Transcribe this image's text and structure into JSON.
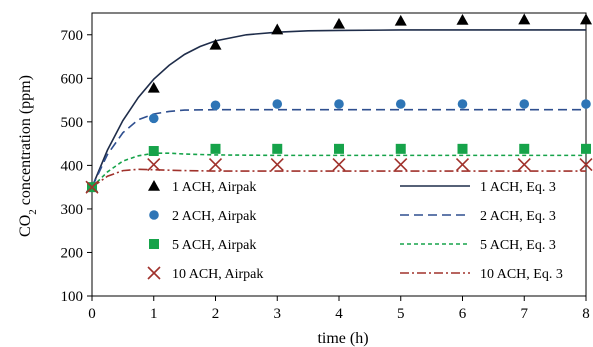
{
  "chart_data": {
    "type": "scatter",
    "xlabel": "time (h)",
    "ylabel_main": "CO",
    "ylabel_sub": "2",
    "ylabel_rest": " concentration  (ppm)",
    "xlim": [
      0,
      8
    ],
    "ylim": [
      100,
      750
    ],
    "x_ticks": [
      0,
      1,
      2,
      3,
      4,
      5,
      6,
      7,
      8
    ],
    "y_ticks": [
      100,
      200,
      300,
      400,
      500,
      600,
      700
    ],
    "grid": false,
    "legend_placement": "bottom-right",
    "markers": [
      {
        "name": "1 ACH, Airpak",
        "marker": "triangle",
        "color": "#000000",
        "x": [
          0,
          1,
          2,
          3,
          4,
          5,
          6,
          7,
          8
        ],
        "y": [
          350,
          578,
          677,
          712,
          725,
          732,
          734,
          735,
          735
        ]
      },
      {
        "name": "2 ACH, Airpak",
        "marker": "circle",
        "color": "#2e75b6",
        "x": [
          0,
          1,
          2,
          3,
          4,
          5,
          6,
          7,
          8
        ],
        "y": [
          350,
          508,
          538,
          541,
          541,
          541,
          541,
          541,
          541
        ]
      },
      {
        "name": "5 ACH, Airpak",
        "marker": "square",
        "color": "#16a34a",
        "x": [
          0,
          1,
          2,
          3,
          4,
          5,
          6,
          7,
          8
        ],
        "y": [
          350,
          433,
          438,
          438,
          438,
          438,
          438,
          438,
          438
        ]
      },
      {
        "name": "10 ACH, Airpak",
        "marker": "x",
        "color": "#a0322c",
        "x": [
          0,
          1,
          2,
          3,
          4,
          5,
          6,
          7,
          8
        ],
        "y": [
          350,
          402,
          402,
          402,
          402,
          402,
          402,
          402,
          402
        ]
      }
    ],
    "curves": [
      {
        "name": "1 ACH, Eq. 3",
        "dash": "solid",
        "color": "#1f2d4a",
        "x": [
          0,
          0.25,
          0.5,
          0.75,
          1,
          1.25,
          1.5,
          1.75,
          2,
          2.5,
          3,
          3.5,
          4,
          5,
          6,
          7,
          8
        ],
        "y": [
          350,
          435,
          503,
          556,
          598,
          630,
          655,
          673,
          686,
          700,
          706,
          709,
          710,
          711,
          711,
          711,
          711
        ]
      },
      {
        "name": "2 ACH, Eq. 3",
        "dash": "long-dash",
        "color": "#2f4f8f",
        "x": [
          0,
          0.25,
          0.5,
          0.75,
          1,
          1.25,
          1.5,
          2,
          3,
          4,
          5,
          6,
          7,
          8
        ],
        "y": [
          350,
          425,
          475,
          505,
          518,
          524,
          527,
          528,
          528,
          528,
          528,
          528,
          528,
          528
        ]
      },
      {
        "name": "5 ACH, Eq. 3",
        "dash": "short-dash",
        "color": "#16a34a",
        "x": [
          0,
          0.25,
          0.5,
          0.75,
          1,
          1.25,
          1.5,
          2,
          3,
          4,
          5,
          6,
          7,
          8
        ],
        "y": [
          350,
          385,
          410,
          422,
          428,
          428,
          426,
          424,
          423,
          423,
          423,
          423,
          423,
          423
        ]
      },
      {
        "name": "10 ACH, Eq. 3",
        "dash": "dash-dot",
        "color": "#a0322c",
        "x": [
          0,
          0.25,
          0.5,
          0.75,
          1,
          1.5,
          2,
          3,
          4,
          5,
          6,
          7,
          8
        ],
        "y": [
          350,
          375,
          388,
          391,
          390,
          388,
          387,
          387,
          387,
          387,
          387,
          387,
          387
        ]
      }
    ]
  }
}
